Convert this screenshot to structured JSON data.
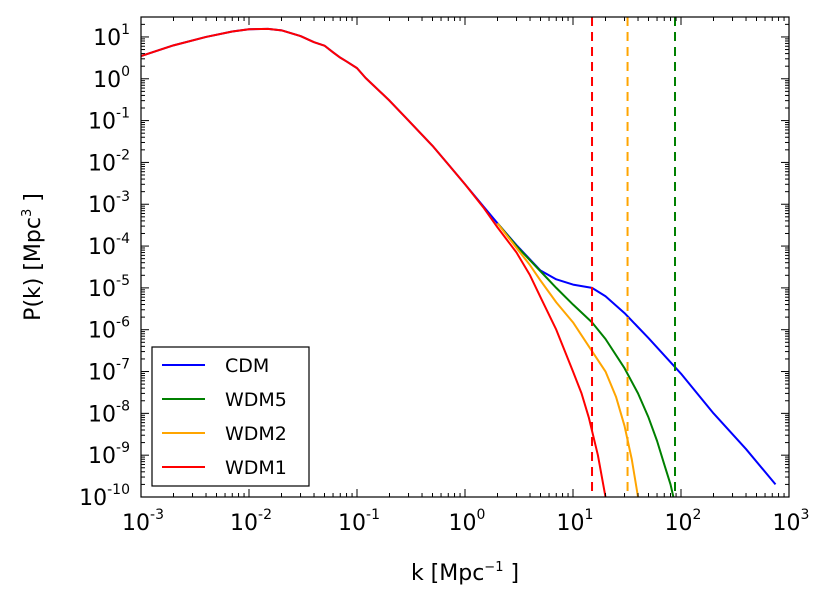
{
  "chart_data": {
    "type": "line",
    "xlabel": {
      "main": "k [Mpc",
      "sup": "−1",
      "end": " ]"
    },
    "ylabel": {
      "main": "P(k) [Mpc",
      "sup": "3",
      "end": " ]"
    },
    "x_scale": "log",
    "y_scale": "log",
    "xlim": [
      0.001,
      1000
    ],
    "ylim": [
      1e-10,
      30
    ],
    "x_ticks": [
      {
        "value": 0.001,
        "base": "10",
        "exp": "-3"
      },
      {
        "value": 0.01,
        "base": "10",
        "exp": "-2"
      },
      {
        "value": 0.1,
        "base": "10",
        "exp": "-1"
      },
      {
        "value": 1,
        "base": "10",
        "exp": "0"
      },
      {
        "value": 10,
        "base": "10",
        "exp": "1"
      },
      {
        "value": 100,
        "base": "10",
        "exp": "2"
      },
      {
        "value": 1000,
        "base": "10",
        "exp": "3"
      }
    ],
    "y_ticks": [
      {
        "value": 1e-10,
        "base": "10",
        "exp": "-10"
      },
      {
        "value": 1e-09,
        "base": "10",
        "exp": "-9"
      },
      {
        "value": 1e-08,
        "base": "10",
        "exp": "-8"
      },
      {
        "value": 1e-07,
        "base": "10",
        "exp": "-7"
      },
      {
        "value": 1e-06,
        "base": "10",
        "exp": "-6"
      },
      {
        "value": 1e-05,
        "base": "10",
        "exp": "-5"
      },
      {
        "value": 0.0001,
        "base": "10",
        "exp": "-4"
      },
      {
        "value": 0.001,
        "base": "10",
        "exp": "-3"
      },
      {
        "value": 0.01,
        "base": "10",
        "exp": "-2"
      },
      {
        "value": 0.1,
        "base": "10",
        "exp": "-1"
      },
      {
        "value": 1,
        "base": "10",
        "exp": "0"
      },
      {
        "value": 10,
        "base": "10",
        "exp": "1"
      }
    ],
    "legend_position": "lower-left",
    "series": [
      {
        "name": "CDM",
        "color": "#0000ff",
        "points": [
          [
            0.001,
            3.5
          ],
          [
            0.002,
            6.3
          ],
          [
            0.004,
            10
          ],
          [
            0.007,
            13.5
          ],
          [
            0.01,
            15.3
          ],
          [
            0.015,
            15.6
          ],
          [
            0.02,
            14.4
          ],
          [
            0.03,
            10.5
          ],
          [
            0.04,
            7.5
          ],
          [
            0.05,
            6.2
          ],
          [
            0.06,
            4.3
          ],
          [
            0.07,
            3.2
          ],
          [
            0.08,
            2.6
          ],
          [
            0.1,
            1.8
          ],
          [
            0.12,
            1.05
          ],
          [
            0.14,
            0.72
          ],
          [
            0.2,
            0.3
          ],
          [
            0.3,
            0.1
          ],
          [
            0.5,
            0.025
          ],
          [
            0.7,
            0.009
          ],
          [
            1,
            0.003
          ],
          [
            1.5,
            0.00085
          ],
          [
            2,
            0.00035
          ],
          [
            3,
            0.000105
          ],
          [
            5,
            2.6e-05
          ],
          [
            7,
            1.6e-05
          ],
          [
            10,
            1.2e-05
          ],
          [
            15,
            1e-05
          ],
          [
            20,
            6.3e-06
          ],
          [
            30,
            2.5e-06
          ],
          [
            50,
            6.3e-07
          ],
          [
            100,
            8.9e-08
          ],
          [
            200,
            1e-08
          ],
          [
            400,
            1.4e-09
          ],
          [
            750,
            2e-10
          ]
        ]
      },
      {
        "name": "WDM5",
        "color": "#008000",
        "points": [
          [
            2,
            0.00035
          ],
          [
            3,
            0.0001
          ],
          [
            5,
            2.5e-05
          ],
          [
            7,
            1e-05
          ],
          [
            10,
            4e-06
          ],
          [
            15,
            1.5e-06
          ],
          [
            20,
            6e-07
          ],
          [
            30,
            1.2e-07
          ],
          [
            40,
            3e-08
          ],
          [
            50,
            8e-09
          ],
          [
            60,
            2.2e-09
          ],
          [
            70,
            6e-10
          ],
          [
            80,
            2e-10
          ],
          [
            85,
            1e-10
          ]
        ]
      },
      {
        "name": "WDM2",
        "color": "#ffa500",
        "points": [
          [
            2,
            0.00035
          ],
          [
            3,
            9e-05
          ],
          [
            4,
            3.5e-05
          ],
          [
            5,
            1.5e-05
          ],
          [
            7,
            4.5e-06
          ],
          [
            10,
            1.5e-06
          ],
          [
            14,
            4e-07
          ],
          [
            20,
            1e-07
          ],
          [
            25,
            2.5e-08
          ],
          [
            30,
            5e-09
          ],
          [
            35,
            8e-10
          ],
          [
            40,
            1e-10
          ]
        ]
      },
      {
        "name": "WDM1",
        "color": "#ff0000",
        "points": [
          [
            0.001,
            3.5
          ],
          [
            0.002,
            6.3
          ],
          [
            0.004,
            10
          ],
          [
            0.007,
            13.5
          ],
          [
            0.01,
            15.3
          ],
          [
            0.015,
            15.6
          ],
          [
            0.02,
            14.4
          ],
          [
            0.03,
            10.5
          ],
          [
            0.04,
            7.5
          ],
          [
            0.05,
            6.2
          ],
          [
            0.06,
            4.3
          ],
          [
            0.07,
            3.2
          ],
          [
            0.08,
            2.6
          ],
          [
            0.1,
            1.8
          ],
          [
            0.12,
            1.05
          ],
          [
            0.14,
            0.72
          ],
          [
            0.2,
            0.3
          ],
          [
            0.3,
            0.1
          ],
          [
            0.5,
            0.025
          ],
          [
            0.7,
            0.009
          ],
          [
            1,
            0.003
          ],
          [
            1.5,
            0.0008
          ],
          [
            2,
            0.00028
          ],
          [
            3,
            7e-05
          ],
          [
            4,
            2e-05
          ],
          [
            5,
            6e-06
          ],
          [
            7,
            1e-06
          ],
          [
            10,
            1e-07
          ],
          [
            12,
            3e-08
          ],
          [
            14,
            8e-09
          ],
          [
            17,
            1e-09
          ],
          [
            20,
            1e-10
          ]
        ]
      }
    ],
    "vlines": [
      {
        "x": 15,
        "color": "#ff0000",
        "style": "dashed"
      },
      {
        "x": 32,
        "color": "#ffa500",
        "style": "dashed"
      },
      {
        "x": 88,
        "color": "#008000",
        "style": "dashed"
      }
    ],
    "legend": [
      {
        "label": "CDM",
        "color": "#0000ff"
      },
      {
        "label": "WDM5",
        "color": "#008000"
      },
      {
        "label": "WDM2",
        "color": "#ffa500"
      },
      {
        "label": "WDM1",
        "color": "#ff0000"
      }
    ]
  }
}
